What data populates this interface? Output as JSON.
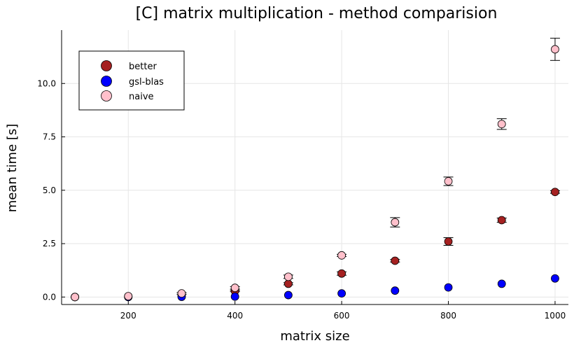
{
  "chart_data": {
    "type": "scatter",
    "title": "[C] matrix multiplication - method comparision",
    "xlabel": "matrix size",
    "ylabel": "mean time [s]",
    "xlim": [
      75,
      1025
    ],
    "ylim": [
      -0.35,
      12.5
    ],
    "xticks": [
      200,
      400,
      600,
      800,
      1000
    ],
    "xtick_labels": [
      "200",
      "400",
      "600",
      "800",
      "1000"
    ],
    "yticks": [
      0,
      2.5,
      5,
      7.5,
      10
    ],
    "ytick_labels": [
      "0.0",
      "2.5",
      "5.0",
      "7.5",
      "10.0"
    ],
    "grid": true,
    "legend_position": "top-left",
    "x": [
      100,
      200,
      300,
      400,
      500,
      600,
      700,
      800,
      900,
      1000
    ],
    "series": [
      {
        "name": "better",
        "color": "#a52121",
        "values": [
          0.0,
          0.02,
          0.08,
          0.28,
          0.62,
          1.1,
          1.7,
          2.6,
          3.6,
          4.92
        ],
        "err": [
          0,
          0,
          0,
          0.03,
          0.05,
          0.08,
          0.06,
          0.18,
          0.1,
          0.06
        ]
      },
      {
        "name": "gsl-blas",
        "color": "#0000ff",
        "values": [
          0.0,
          0.0,
          0.01,
          0.02,
          0.09,
          0.17,
          0.3,
          0.45,
          0.62,
          0.87
        ],
        "err": [
          0,
          0,
          0,
          0,
          0,
          0,
          0,
          0,
          0,
          0
        ]
      },
      {
        "name": "naive",
        "color": "#ffc0cb",
        "values": [
          0.0,
          0.04,
          0.17,
          0.43,
          0.95,
          1.95,
          3.5,
          5.42,
          8.1,
          11.6
        ],
        "err": [
          0,
          0,
          0.04,
          0.06,
          0.08,
          0.05,
          0.22,
          0.2,
          0.25,
          0.52
        ]
      }
    ]
  }
}
